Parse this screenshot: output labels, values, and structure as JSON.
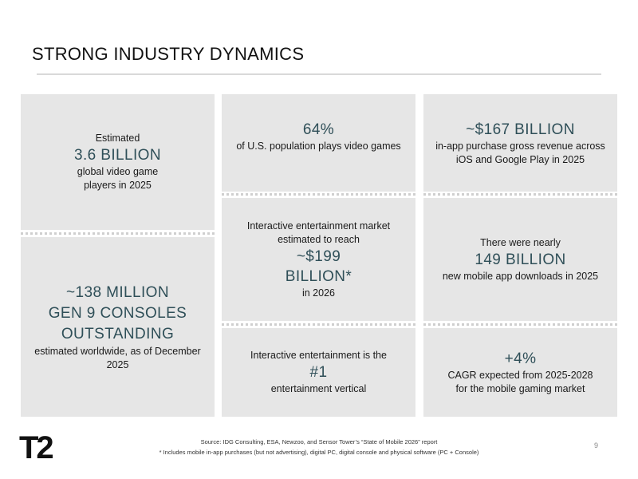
{
  "title": "STRONG INDUSTRY DYNAMICS",
  "tiles": {
    "players": {
      "pre": "Estimated",
      "big": "3.6 BILLION",
      "line1": "global video game",
      "line2": "players in 2025"
    },
    "consoles": {
      "big1": "~138 MILLION",
      "big2": "GEN 9 CONSOLES",
      "big3": "OUTSTANDING",
      "post": "estimated worldwide, as of December 2025"
    },
    "population": {
      "big": "64%",
      "post": "of U.S. population plays video games"
    },
    "market": {
      "pre1": "Interactive entertainment market",
      "pre2": "estimated to reach",
      "big1": "~$199",
      "big2": "BILLION*",
      "post": "in 2026"
    },
    "vertical": {
      "pre": "Interactive entertainment is the",
      "big": "#1",
      "post": "entertainment vertical"
    },
    "iap": {
      "big": "~$167 BILLION",
      "line1": "in-app purchase gross revenue across",
      "line2": "iOS and Google Play in 2025"
    },
    "downloads": {
      "pre": "There were nearly",
      "big": "149 BILLION",
      "post": "new mobile app downloads in 2025"
    },
    "cagr": {
      "big": "+4%",
      "line1": "CAGR expected from 2025-2028",
      "line2": "for the mobile gaming market"
    }
  },
  "logo": {
    "text": "T2",
    "color": "#111111"
  },
  "footer": {
    "source": "Source:  IDG Consulting, ESA, Newzoo, and Sensor Tower’s “State of Mobile 2026” report",
    "note": "*  Includes mobile in-app purchases (but not advertising), digital PC, digital console and physical software (PC + Console)",
    "page": "9"
  },
  "colors": {
    "tile_bg": "#e6e6e6",
    "accent": "#2f4f58"
  }
}
